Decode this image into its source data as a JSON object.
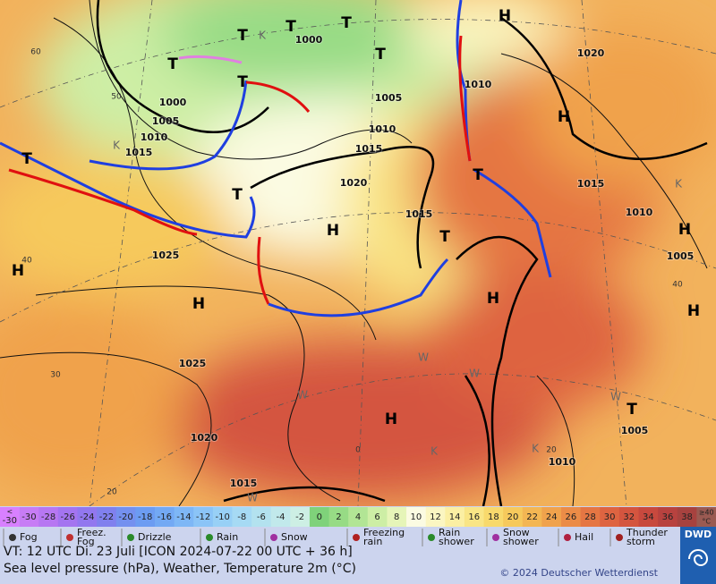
{
  "map": {
    "pressure_labels": [
      "1000",
      "1000",
      "1005",
      "1010",
      "1015",
      "1005",
      "1010",
      "1015",
      "1020",
      "1015",
      "1025",
      "1025",
      "1020",
      "1015",
      "1020",
      "1010",
      "1015",
      "1010",
      "1005",
      "1005",
      "1010"
    ],
    "temperature_labels": [
      "60",
      "50",
      "40",
      "30",
      "20",
      "0",
      "20",
      "40"
    ],
    "highs": [
      "H",
      "H",
      "H",
      "H",
      "H",
      "H",
      "H",
      "H",
      "H"
    ],
    "lows": [
      "T",
      "T",
      "T",
      "T",
      "T",
      "T",
      "T",
      "T",
      "T",
      "T",
      "T"
    ],
    "weather_letters": [
      "K",
      "K",
      "K",
      "K",
      "K",
      "W",
      "W",
      "W",
      "W",
      "W"
    ]
  },
  "colorbar": {
    "low": {
      "symbol": "<",
      "value": -30,
      "color": "#d880ff"
    },
    "values": [
      -30,
      -28,
      -26,
      -24,
      -22,
      -20,
      -18,
      -16,
      -14,
      -12,
      -10,
      -8,
      -6,
      -4,
      -2,
      0,
      2,
      4,
      6,
      8,
      10,
      12,
      14,
      16,
      18,
      20,
      22,
      24,
      26,
      28,
      30,
      32,
      34,
      36,
      38
    ],
    "colors": [
      "#c77cf5",
      "#b777f2",
      "#a474f0",
      "#9277ef",
      "#8080ee",
      "#7490ef",
      "#6c9cf2",
      "#73a9f4",
      "#7eb7f6",
      "#8bc4f7",
      "#98d0f6",
      "#a6daf4",
      "#b3e2ef",
      "#c1e9eb",
      "#cdefe4",
      "#7fd27a",
      "#97db85",
      "#b2e595",
      "#cdeea5",
      "#e6f5b8",
      "#fbfbe2",
      "#fbf6c2",
      "#fbefa3",
      "#f9e585",
      "#f8d96c",
      "#f6c95c",
      "#f3b653",
      "#f0a24c",
      "#eb8c47",
      "#e57643",
      "#de6441",
      "#d4553f",
      "#c8493e",
      "#b8423f",
      "#a7423f"
    ],
    "high": {
      "symbol": "≥40",
      "unit": "°C",
      "color": "#9a5a52"
    }
  },
  "legend": {
    "items": [
      "Fog",
      "Freez. Fog",
      "Drizzle",
      "Rain",
      "Snow",
      "Freezing rain",
      "Rain shower",
      "Snow shower",
      "Hail",
      "Thunder storm"
    ]
  },
  "footer": {
    "valid_time": "VT: 12 UTC Di.  23 Juli [ICON 2024-07-22  00 UTC + 36 h]",
    "description": "Sea level pressure (hPa), Weather, Temperature 2m (°C)",
    "copyright": "© 2024 Deutscher Wetterdienst",
    "logo": "DWD"
  }
}
